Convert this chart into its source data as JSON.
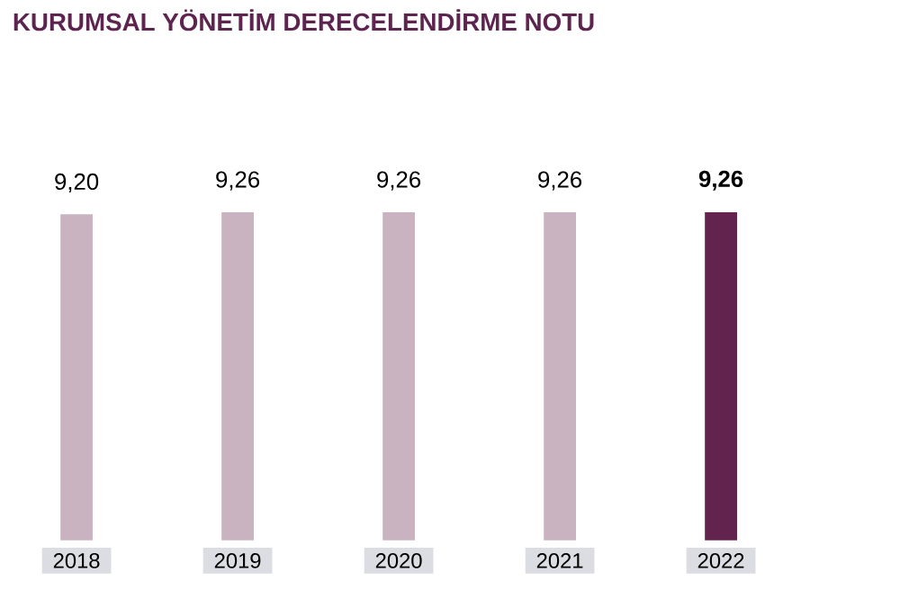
{
  "chart_data": {
    "type": "bar",
    "title": "KURUMSAL YÖNETİM DERECELENDİRME NOTU",
    "categories": [
      "2018",
      "2019",
      "2020",
      "2021",
      "2022"
    ],
    "values": [
      9.2,
      9.26,
      9.26,
      9.26,
      9.26
    ],
    "value_labels": [
      "9,20",
      "9,26",
      "9,26",
      "9,26",
      "**9,26**"
    ],
    "colors": [
      "#c9b3c1",
      "#c9b3c1",
      "#c9b3c1",
      "#c9b3c1",
      "#62234f"
    ]
  }
}
